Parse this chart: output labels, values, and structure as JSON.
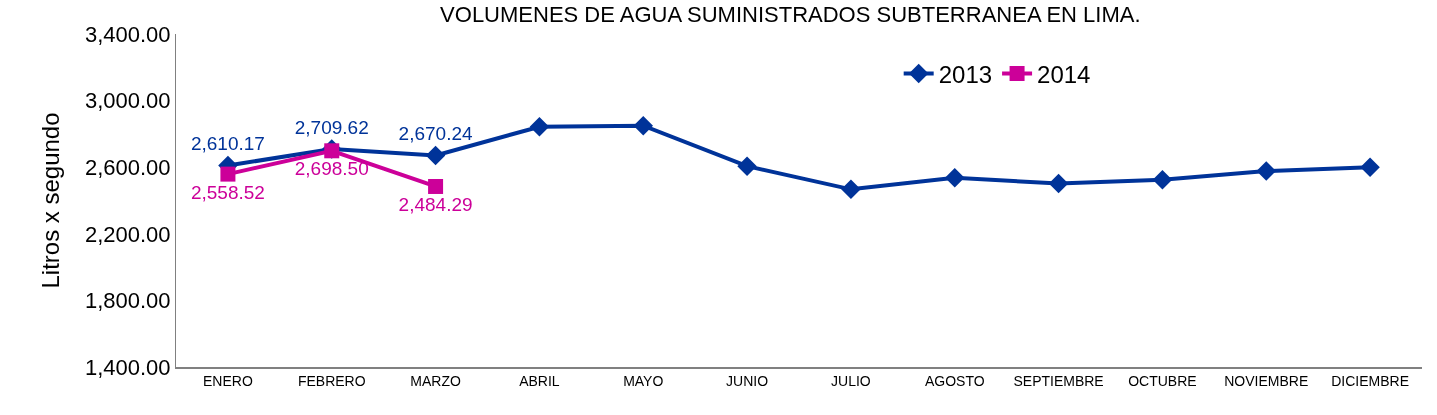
{
  "chart_data": {
    "type": "line",
    "title": "VOLUMENES DE AGUA SUMINISTRADOS SUBTERRANEA EN LIMA.",
    "ylabel": "Litros x segundo",
    "categories": [
      "ENERO",
      "FEBRERO",
      "MARZO",
      "ABRIL",
      "MAYO",
      "JUNIO",
      "JULIO",
      "AGOSTO",
      "SEPTIEMBRE",
      "OCTUBRE",
      "NOVIEMBRE",
      "DICIEMBRE"
    ],
    "series": [
      {
        "name": "2013",
        "color": "#003399",
        "marker": "diamond",
        "values": [
          2610.17,
          2709.62,
          2670.24,
          2843,
          2849,
          2606,
          2467,
          2536,
          2502,
          2525,
          2577,
          2600
        ],
        "value_labels": [
          "2,610.17",
          "2,709.62",
          "2,670.24",
          null,
          null,
          null,
          null,
          null,
          null,
          null,
          null,
          null
        ]
      },
      {
        "name": "2014",
        "color": "#cc0099",
        "marker": "square",
        "values": [
          2558.52,
          2698.5,
          2484.29,
          null,
          null,
          null,
          null,
          null,
          null,
          null,
          null,
          null
        ],
        "value_labels": [
          "2,558.52",
          "2,698.50",
          "2,484.29",
          null,
          null,
          null,
          null,
          null,
          null,
          null,
          null,
          null
        ]
      }
    ],
    "ylim": [
      1400,
      3400
    ],
    "yticks": [
      {
        "value": 1400,
        "label": "1,400.00"
      },
      {
        "value": 1800,
        "label": "1,800.00"
      },
      {
        "value": 2200,
        "label": "2,200.00"
      },
      {
        "value": 2600,
        "label": "2,600.00"
      },
      {
        "value": 3000,
        "label": "3,000.00"
      },
      {
        "value": 3400,
        "label": "3,400.00"
      }
    ],
    "grid": false,
    "legend": "top right",
    "line_style": "solid"
  }
}
